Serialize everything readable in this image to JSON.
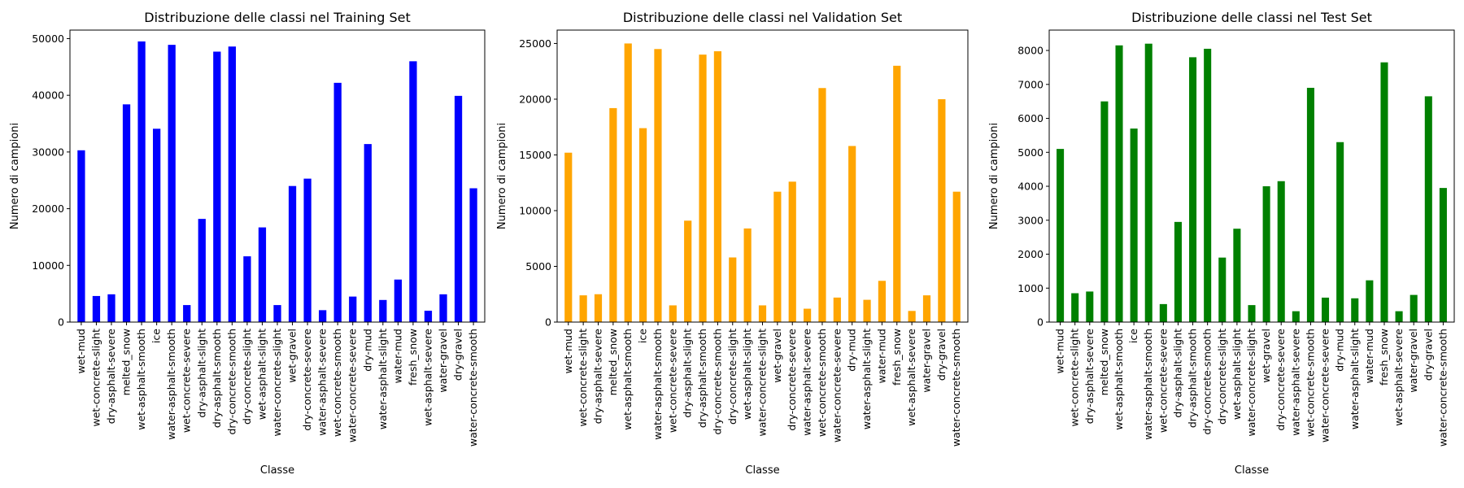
{
  "chart_data": [
    {
      "type": "bar",
      "title": "Distribuzione delle classi nel Training Set",
      "xlabel": "Classe",
      "ylabel": "Numero di campioni",
      "color": "#0000ff",
      "ylim": [
        0,
        51500
      ],
      "yticks": [
        0,
        10000,
        20000,
        30000,
        40000,
        50000
      ],
      "categories": [
        "wet-mud",
        "wet-concrete-slight",
        "dry-asphalt-severe",
        "melted_snow",
        "wet-asphalt-smooth",
        "ice",
        "water-asphalt-smooth",
        "wet-concrete-severe",
        "dry-asphalt-slight",
        "dry-asphalt-smooth",
        "dry-concrete-smooth",
        "dry-concrete-slight",
        "wet-asphalt-slight",
        "water-concrete-slight",
        "wet-gravel",
        "dry-concrete-severe",
        "water-asphalt-severe",
        "wet-concrete-smooth",
        "water-concrete-severe",
        "dry-mud",
        "water-asphalt-slight",
        "water-mud",
        "fresh_snow",
        "wet-asphalt-severe",
        "water-gravel",
        "dry-gravel",
        "water-concrete-smooth"
      ],
      "values": [
        30300,
        4600,
        4900,
        38400,
        49500,
        34100,
        48900,
        3000,
        18200,
        47700,
        48600,
        11600,
        16700,
        3000,
        24000,
        25300,
        2100,
        42200,
        4500,
        31400,
        3900,
        7500,
        46000,
        2000,
        4900,
        39900,
        23600
      ]
    },
    {
      "type": "bar",
      "title": "Distribuzione delle classi nel Validation Set",
      "xlabel": "Classe",
      "ylabel": "Numero di campioni",
      "color": "#ffa500",
      "ylim": [
        0,
        26200
      ],
      "yticks": [
        0,
        5000,
        10000,
        15000,
        20000,
        25000
      ],
      "categories": [
        "wet-mud",
        "wet-concrete-slight",
        "dry-asphalt-severe",
        "melted_snow",
        "wet-asphalt-smooth",
        "ice",
        "water-asphalt-smooth",
        "wet-concrete-severe",
        "dry-asphalt-slight",
        "dry-asphalt-smooth",
        "dry-concrete-smooth",
        "dry-concrete-slight",
        "wet-asphalt-slight",
        "water-concrete-slight",
        "wet-gravel",
        "dry-concrete-severe",
        "water-asphalt-severe",
        "wet-concrete-smooth",
        "water-concrete-severe",
        "dry-mud",
        "water-asphalt-slight",
        "water-mud",
        "fresh_snow",
        "wet-asphalt-severe",
        "water-gravel",
        "dry-gravel",
        "water-concrete-smooth"
      ],
      "values": [
        15200,
        2400,
        2500,
        19200,
        25000,
        17400,
        24500,
        1500,
        9100,
        24000,
        24300,
        5800,
        8400,
        1500,
        11700,
        12600,
        1200,
        21000,
        2200,
        15800,
        2000,
        3700,
        23000,
        1000,
        2400,
        20000,
        11700
      ]
    },
    {
      "type": "bar",
      "title": "Distribuzione delle classi nel Test Set",
      "xlabel": "Classe",
      "ylabel": "Numero di campioni",
      "color": "#008000",
      "ylim": [
        0,
        8600
      ],
      "yticks": [
        0,
        1000,
        2000,
        3000,
        4000,
        5000,
        6000,
        7000,
        8000
      ],
      "categories": [
        "wet-mud",
        "wet-concrete-slight",
        "dry-asphalt-severe",
        "melted_snow",
        "wet-asphalt-smooth",
        "ice",
        "water-asphalt-smooth",
        "wet-concrete-severe",
        "dry-asphalt-slight",
        "dry-asphalt-smooth",
        "dry-concrete-smooth",
        "dry-concrete-slight",
        "wet-asphalt-slight",
        "water-concrete-slight",
        "wet-gravel",
        "dry-concrete-severe",
        "water-asphalt-severe",
        "wet-concrete-smooth",
        "water-concrete-severe",
        "dry-mud",
        "water-asphalt-slight",
        "water-mud",
        "fresh_snow",
        "wet-asphalt-severe",
        "water-gravel",
        "dry-gravel",
        "water-concrete-smooth"
      ],
      "values": [
        5100,
        850,
        900,
        6500,
        8150,
        5700,
        8200,
        530,
        2950,
        7800,
        8050,
        1900,
        2750,
        500,
        4000,
        4150,
        320,
        6900,
        720,
        5300,
        700,
        1230,
        7650,
        320,
        800,
        6650,
        3950
      ]
    }
  ]
}
